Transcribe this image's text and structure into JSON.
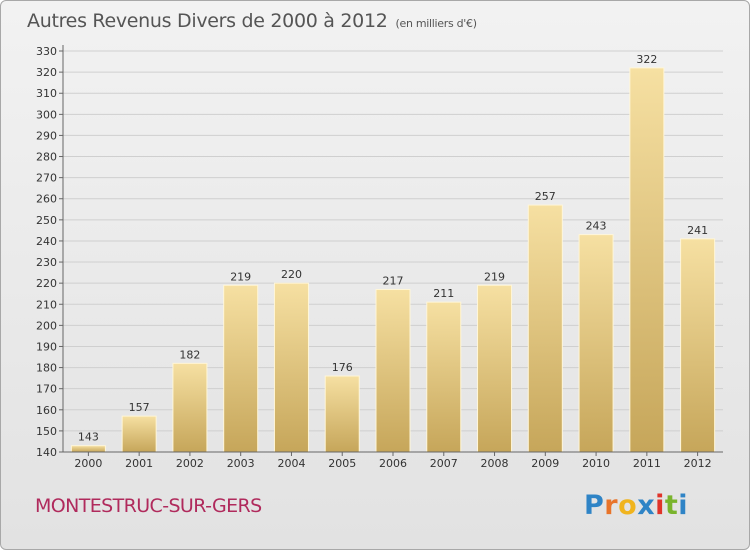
{
  "title": "Autres Revenus Divers de 2000 à 2012",
  "subtitle": "(en milliers d'€)",
  "commune": "MONTESTRUC-SUR-GERS",
  "brand": {
    "letters": [
      "P",
      "r",
      "o",
      "x",
      "i",
      "t",
      "i"
    ],
    "colors": [
      "#2f84c6",
      "#e8742a",
      "#f0b41e",
      "#2f84c6",
      "#e0342a",
      "#7ab42d",
      "#2f84c6"
    ]
  },
  "colors": {
    "bar_light": "#f5dea0",
    "bar_dark": "#c8a85c",
    "title": "#555555",
    "commune": "#b02a5c"
  },
  "chart_data": {
    "type": "bar",
    "title": "Autres Revenus Divers de 2000 à 2012",
    "subtitle": "(en milliers d'€)",
    "categories": [
      "2000",
      "2001",
      "2002",
      "2003",
      "2004",
      "2005",
      "2006",
      "2007",
      "2008",
      "2009",
      "2010",
      "2011",
      "2012"
    ],
    "values": [
      143,
      157,
      182,
      219,
      220,
      176,
      217,
      211,
      219,
      257,
      243,
      322,
      241
    ],
    "ylim": [
      140,
      330
    ],
    "yticks": [
      140,
      150,
      160,
      170,
      180,
      190,
      200,
      210,
      220,
      230,
      240,
      250,
      260,
      270,
      280,
      290,
      300,
      310,
      320,
      330
    ],
    "grid": true,
    "xlabel": "",
    "ylabel": ""
  }
}
